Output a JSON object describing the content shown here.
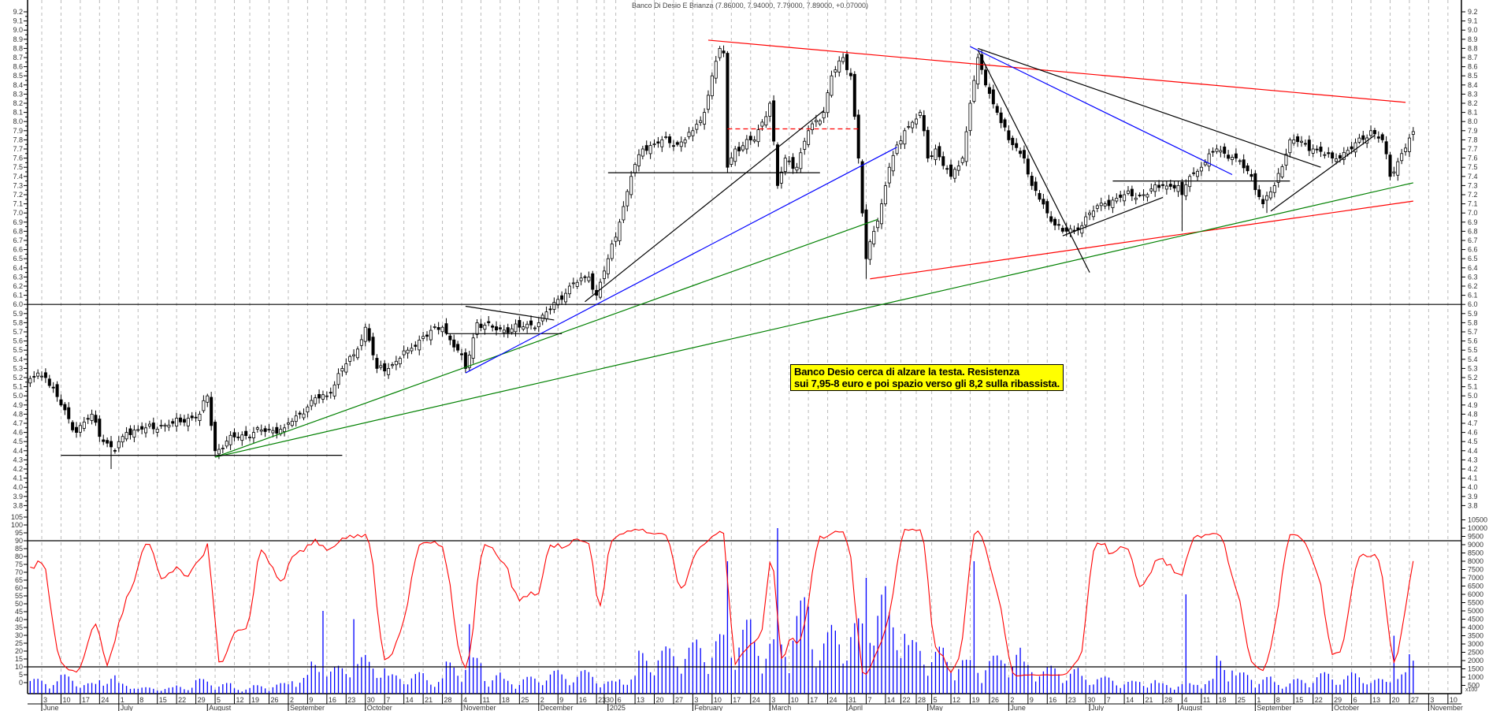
{
  "header": {
    "title": "Banco Di Desio E Brianza (7.86000, 7.94000, 7.79000, 7.89000, +0.07000)"
  },
  "annotation": {
    "line1": "Banco Desio cerca di alzare la testa. Resistenza",
    "line2": "sui 7,95-8 euro e poi spazio verso gli 8,2 sulla ribassista."
  },
  "volume_unit": "x100",
  "colors": {
    "up_candle": "#ffffff",
    "down_candle": "#000000",
    "oscillator": "#ff0000",
    "volume": "#0000ff",
    "grid": "#bbbbbb",
    "note_bg": "#ffff00"
  },
  "chart_data": [
    {
      "type": "candlestick",
      "title": "Banco Di Desio E Brianza",
      "last_bar": {
        "open": 7.86,
        "high": 7.94,
        "low": 7.79,
        "close": 7.89,
        "change": 0.07
      },
      "ylim": [
        3.8,
        9.2
      ],
      "y_ticks_step": 0.1,
      "x_months": [
        {
          "label": "June",
          "date": "2024-06-03"
        },
        {
          "label": "July",
          "date": "2024-07-01"
        },
        {
          "label": "August",
          "date": "2024-08-01"
        },
        {
          "label": "September",
          "date": "2024-09-02"
        },
        {
          "label": "October",
          "date": "2024-09-30"
        },
        {
          "label": "November",
          "date": "2024-11-04"
        },
        {
          "label": "December",
          "date": "2024-12-02"
        },
        {
          "label": "2025",
          "date": "2025-01-02"
        },
        {
          "label": "February",
          "date": "2025-02-03"
        },
        {
          "label": "March",
          "date": "2025-03-03"
        },
        {
          "label": "April",
          "date": "2025-03-31"
        },
        {
          "label": "May",
          "date": "2025-05-02"
        },
        {
          "label": "June",
          "date": "2025-06-02"
        },
        {
          "label": "July",
          "date": "2025-07-01"
        },
        {
          "label": "August",
          "date": "2025-08-01"
        },
        {
          "label": "September",
          "date": "2025-09-01"
        },
        {
          "label": "October",
          "date": "2025-09-29"
        },
        {
          "label": "November",
          "date": "2025-11-03"
        }
      ],
      "close_anchors": [
        [
          "2024-05-27",
          5.1
        ],
        [
          "2024-05-31",
          5.25
        ],
        [
          "2024-06-04",
          5.2
        ],
        [
          "2024-06-10",
          4.9
        ],
        [
          "2024-06-14",
          4.6
        ],
        [
          "2024-06-20",
          4.8
        ],
        [
          "2024-06-25",
          4.5
        ],
        [
          "2024-06-28",
          4.4
        ],
        [
          "2024-07-03",
          4.6
        ],
        [
          "2024-07-10",
          4.65
        ],
        [
          "2024-07-19",
          4.7
        ],
        [
          "2024-07-30",
          4.8
        ],
        [
          "2024-08-01",
          5.0
        ],
        [
          "2024-08-05",
          4.4
        ],
        [
          "2024-08-12",
          4.55
        ],
        [
          "2024-08-20",
          4.6
        ],
        [
          "2024-08-30",
          4.65
        ],
        [
          "2024-09-05",
          4.8
        ],
        [
          "2024-09-10",
          4.95
        ],
        [
          "2024-09-16",
          5.0
        ],
        [
          "2024-09-20",
          5.3
        ],
        [
          "2024-09-25",
          5.45
        ],
        [
          "2024-09-30",
          5.75
        ],
        [
          "2024-10-03",
          5.3
        ],
        [
          "2024-10-08",
          5.3
        ],
        [
          "2024-10-15",
          5.5
        ],
        [
          "2024-10-21",
          5.65
        ],
        [
          "2024-10-28",
          5.75
        ],
        [
          "2024-11-01",
          5.5
        ],
        [
          "2024-11-05",
          5.3
        ],
        [
          "2024-11-08",
          5.8
        ],
        [
          "2024-11-15",
          5.72
        ],
        [
          "2024-11-25",
          5.75
        ],
        [
          "2024-12-02",
          5.8
        ],
        [
          "2024-12-05",
          5.95
        ],
        [
          "2024-12-12",
          6.2
        ],
        [
          "2024-12-19",
          6.3
        ],
        [
          "2024-12-23",
          6.1
        ],
        [
          "2025-01-02",
          6.5
        ],
        [
          "2025-01-07",
          6.9
        ],
        [
          "2025-01-10",
          7.4
        ],
        [
          "2025-01-15",
          7.7
        ],
        [
          "2025-01-22",
          7.8
        ],
        [
          "2025-01-28",
          7.75
        ],
        [
          "2025-02-03",
          7.9
        ],
        [
          "2025-02-06",
          8.1
        ],
        [
          "2025-02-10",
          8.5
        ],
        [
          "2025-02-12",
          8.8
        ],
        [
          "2025-02-13",
          8.75
        ],
        [
          "2025-02-14",
          7.5
        ],
        [
          "2025-02-18",
          7.7
        ],
        [
          "2025-02-25",
          7.8
        ],
        [
          "2025-03-03",
          8.2
        ],
        [
          "2025-03-05",
          7.3
        ],
        [
          "2025-03-07",
          7.6
        ],
        [
          "2025-03-12",
          7.5
        ],
        [
          "2025-03-17",
          7.9
        ],
        [
          "2025-03-21",
          8.1
        ],
        [
          "2025-03-25",
          8.5
        ],
        [
          "2025-03-28",
          8.7
        ],
        [
          "2025-04-01",
          8.5
        ],
        [
          "2025-04-03",
          7.6
        ],
        [
          "2025-04-04",
          7.0
        ],
        [
          "2025-04-07",
          6.5
        ],
        [
          "2025-04-09",
          6.8
        ],
        [
          "2025-04-11",
          7.1
        ],
        [
          "2025-04-15",
          7.5
        ],
        [
          "2025-04-23",
          7.9
        ],
        [
          "2025-04-29",
          8.1
        ],
        [
          "2025-05-02",
          7.6
        ],
        [
          "2025-05-06",
          7.7
        ],
        [
          "2025-05-12",
          7.4
        ],
        [
          "2025-05-15",
          7.6
        ],
        [
          "2025-05-19",
          8.2
        ],
        [
          "2025-05-21",
          8.7
        ],
        [
          "2025-05-23",
          8.4
        ],
        [
          "2025-05-28",
          8.1
        ],
        [
          "2025-06-02",
          7.8
        ],
        [
          "2025-06-06",
          7.6
        ],
        [
          "2025-06-10",
          7.3
        ],
        [
          "2025-06-16",
          7.0
        ],
        [
          "2025-06-20",
          6.8
        ],
        [
          "2025-06-25",
          6.8
        ],
        [
          "2025-07-01",
          7.0
        ],
        [
          "2025-07-07",
          7.1
        ],
        [
          "2025-07-14",
          7.2
        ],
        [
          "2025-07-21",
          7.2
        ],
        [
          "2025-07-28",
          7.3
        ],
        [
          "2025-08-01",
          7.3
        ],
        [
          "2025-08-04",
          7.2
        ],
        [
          "2025-08-06",
          7.4
        ],
        [
          "2025-08-11",
          7.5
        ],
        [
          "2025-08-18",
          7.7
        ],
        [
          "2025-08-25",
          7.6
        ],
        [
          "2025-08-29",
          7.4
        ],
        [
          "2025-09-03",
          7.1
        ],
        [
          "2025-09-08",
          7.3
        ],
        [
          "2025-09-12",
          7.8
        ],
        [
          "2025-09-15",
          7.8
        ],
        [
          "2025-09-22",
          7.7
        ],
        [
          "2025-09-29",
          7.6
        ],
        [
          "2025-10-06",
          7.7
        ],
        [
          "2025-10-13",
          7.9
        ],
        [
          "2025-10-16",
          7.8
        ],
        [
          "2025-10-20",
          7.4
        ],
        [
          "2025-10-23",
          7.65
        ],
        [
          "2025-10-27",
          7.82
        ],
        [
          "2025-10-28",
          7.89
        ]
      ],
      "wick_lows": [
        [
          "2024-06-27",
          4.2
        ],
        [
          "2024-08-05",
          4.33
        ],
        [
          "2025-04-07",
          6.28
        ],
        [
          "2025-08-04",
          6.8
        ],
        [
          "2025-09-04",
          7.0
        ]
      ],
      "levels": [
        {
          "price": 6.0,
          "color": "#000000"
        }
      ],
      "trendlines": [
        {
          "from": [
            "2025-02-07",
            8.89
          ],
          "to": [
            "2025-10-24",
            8.21
          ],
          "color": "#ff0000"
        },
        {
          "from": [
            "2025-04-08",
            6.28
          ],
          "to": [
            "2025-10-28",
            7.13
          ],
          "color": "#ff0000"
        },
        {
          "from": [
            "2024-08-05",
            4.33
          ],
          "to": [
            "2025-10-28",
            7.33
          ],
          "color": "#008000"
        },
        {
          "from": [
            "2024-08-05",
            4.33
          ],
          "to": [
            "2025-04-10",
            6.93
          ],
          "color": "#008000"
        },
        {
          "from": [
            "2024-06-10",
            4.35
          ],
          "to": [
            "2024-09-20",
            4.35
          ],
          "color": "#000000"
        },
        {
          "from": [
            "2024-10-29",
            5.68
          ],
          "to": [
            "2024-12-10",
            5.68
          ],
          "color": "#000000"
        },
        {
          "from": [
            "2025-01-02",
            7.44
          ],
          "to": [
            "2025-03-20",
            7.44
          ],
          "color": "#000000"
        },
        {
          "from": [
            "2025-07-09",
            7.35
          ],
          "to": [
            "2025-09-12",
            7.35
          ],
          "color": "#000000"
        },
        {
          "from": [
            "2025-02-14",
            7.92
          ],
          "to": [
            "2025-04-03",
            7.92
          ],
          "color": "#ff0000",
          "dashed": true
        },
        {
          "from": [
            "2024-11-05",
            5.25
          ],
          "to": [
            "2025-04-17",
            7.72
          ],
          "color": "#0000ff"
        },
        {
          "from": [
            "2025-05-19",
            8.82
          ],
          "to": [
            "2025-08-22",
            7.42
          ],
          "color": "#0000ff"
        },
        {
          "from": [
            "2024-12-18",
            6.03
          ],
          "to": [
            "2025-03-21",
            8.12
          ],
          "color": "#000000"
        },
        {
          "from": [
            "2025-05-21",
            8.78
          ],
          "to": [
            "2025-07-01",
            6.35
          ],
          "color": "#000000"
        },
        {
          "from": [
            "2025-06-20",
            6.75
          ],
          "to": [
            "2025-07-28",
            7.17
          ],
          "color": "#000000"
        },
        {
          "from": [
            "2025-05-21",
            8.8
          ],
          "to": [
            "2025-09-24",
            7.5
          ],
          "color": "#000000"
        },
        {
          "from": [
            "2025-09-05",
            7.02
          ],
          "to": [
            "2025-10-14",
            7.85
          ],
          "color": "#000000"
        },
        {
          "from": [
            "2024-11-05",
            5.98
          ],
          "to": [
            "2024-12-06",
            5.83
          ],
          "color": "#000000"
        }
      ]
    },
    {
      "type": "line",
      "ylim": [
        0,
        105
      ],
      "y_ticks_step": 5,
      "reference_levels": [
        90,
        10
      ],
      "series": [
        {
          "values_from": "stochastic of price"
        }
      ]
    },
    {
      "type": "bar",
      "unit": "x100",
      "ylim": [
        0,
        10500
      ],
      "y_ticks_step": 500,
      "weekly_volume_start": "2024-06-03",
      "weekly_volume": [
        700,
        900,
        500,
        900,
        500,
        300,
        300,
        400,
        700,
        500,
        300,
        400,
        500,
        900,
        1500,
        1300,
        1800,
        1600,
        900,
        1000,
        800,
        1500,
        1700,
        1000,
        700,
        800,
        1100,
        1000,
        1100,
        600,
        900,
        2000,
        2200,
        2400,
        2600,
        2800,
        3500,
        2800,
        2600,
        4500,
        3000,
        3200,
        3500,
        5000,
        4000,
        2500,
        2200,
        1800,
        1600,
        1800,
        2200,
        1500,
        1300,
        1200,
        900,
        800,
        600,
        700,
        500,
        500,
        700,
        1800,
        1000,
        800,
        600,
        700,
        1000,
        900,
        1000,
        700,
        1000,
        1900,
        1200,
        700
      ],
      "spikes": [
        [
          "2024-09-13",
          5000
        ],
        [
          "2024-09-25",
          4500
        ],
        [
          "2024-11-06",
          4200
        ],
        [
          "2025-02-14",
          8000
        ],
        [
          "2025-03-05",
          10000
        ],
        [
          "2025-04-07",
          7000
        ],
        [
          "2025-05-20",
          8000
        ],
        [
          "2025-08-05",
          6000
        ],
        [
          "2025-10-21",
          3500
        ]
      ]
    }
  ]
}
